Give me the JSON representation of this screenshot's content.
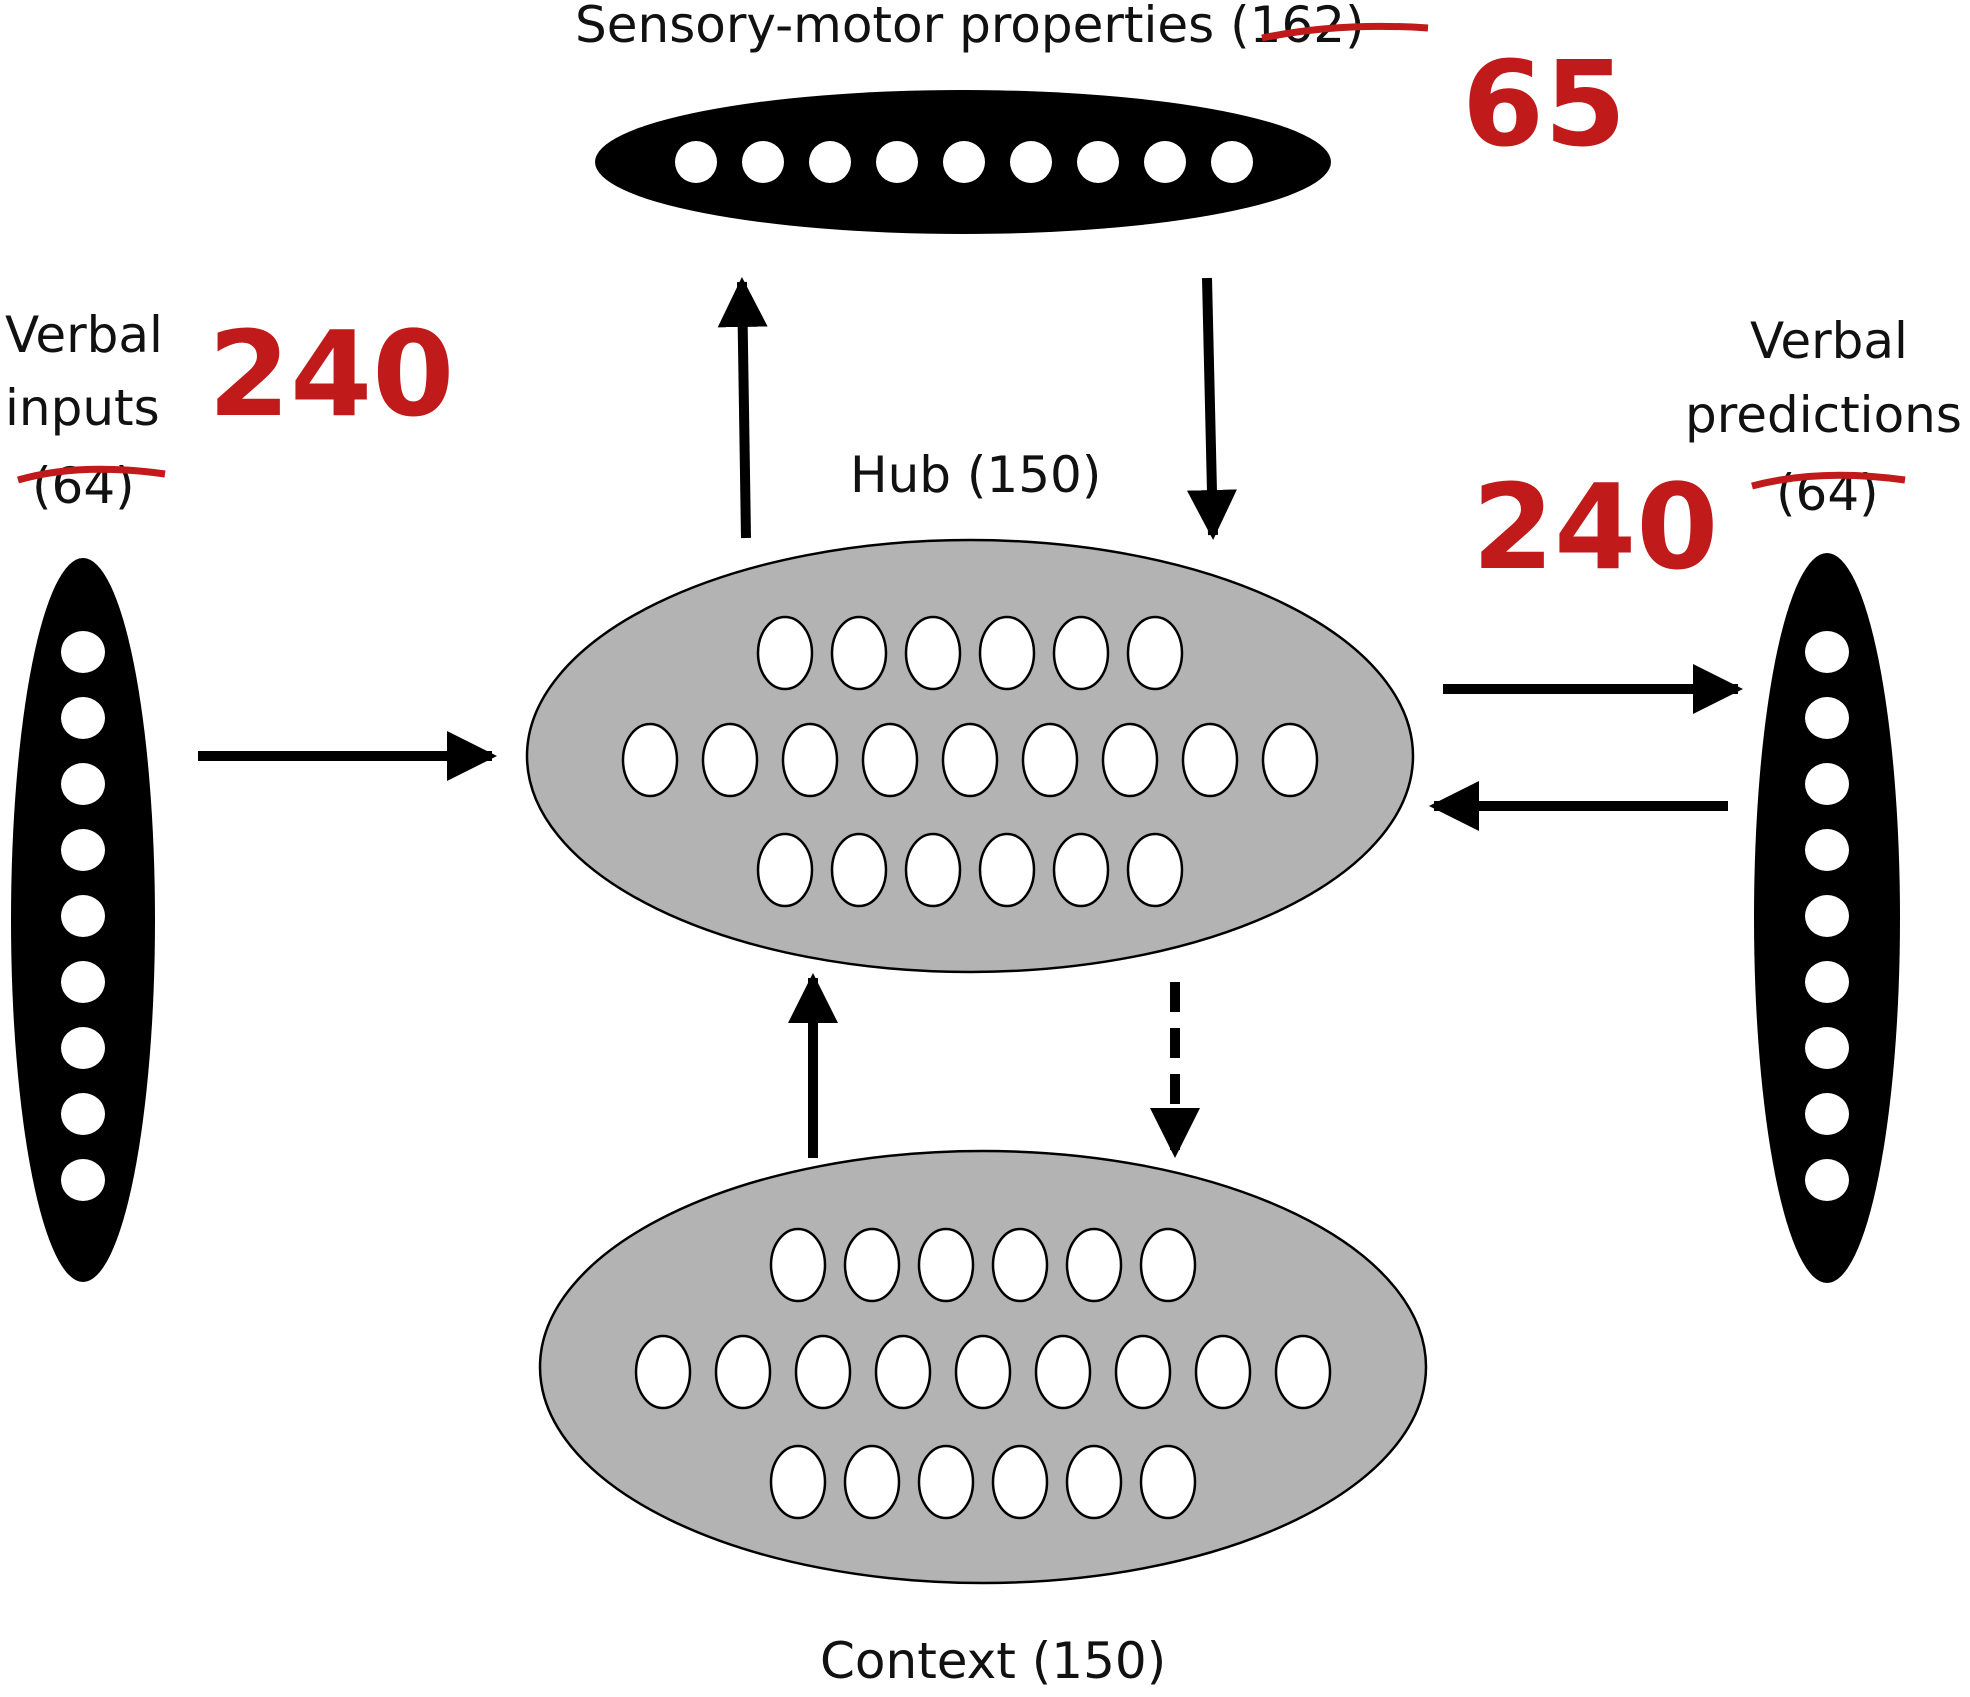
{
  "labels": {
    "sensory_prefix": "Sensory-motor properties ",
    "sensory_count": "(162)",
    "verbal_inputs_line1": "Verbal",
    "verbal_inputs_line2": "inputs",
    "verbal_inputs_count": "(64)",
    "verbal_predictions_line1": "Verbal",
    "verbal_predictions_line2": "predictions",
    "verbal_predictions_count": "(64)",
    "hub": "Hub (150)",
    "context": "Context (150)"
  },
  "annotations": {
    "sensory_new": "65",
    "verbal_inputs_new": "240",
    "verbal_predictions_new": "240"
  },
  "colors": {
    "annotation": "#c01a1a",
    "layer_dark": "#000000",
    "layer_gray": "#b3b3b3",
    "unit": "#ffffff"
  }
}
